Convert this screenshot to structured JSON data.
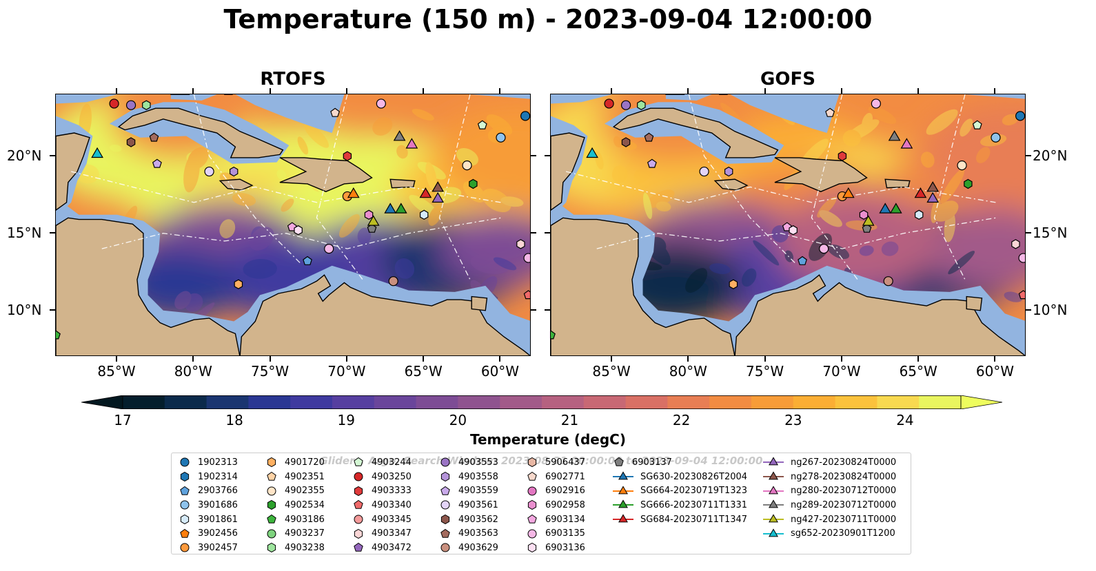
{
  "title": "Temperature (150 m) - 2023-09-04 12:00:00",
  "panels": [
    {
      "title": "RTOFS"
    },
    {
      "title": "GOFS"
    }
  ],
  "axes": {
    "x_ticks": [
      "85°W",
      "80°W",
      "75°W",
      "70°W",
      "65°W",
      "60°W"
    ],
    "x_values": [
      -85,
      -80,
      -75,
      -70,
      -65,
      -60
    ],
    "y_ticks": [
      "20°N",
      "15°N",
      "10°N"
    ],
    "y_values": [
      20,
      15,
      10
    ],
    "lon_range": [
      -89,
      -58
    ],
    "lat_range": [
      7,
      24
    ]
  },
  "colorbar": {
    "label": "Temperature (degC)",
    "ticks": [
      "17",
      "18",
      "19",
      "20",
      "21",
      "22",
      "23",
      "24"
    ],
    "tick_values": [
      17,
      18,
      19,
      20,
      21,
      22,
      23,
      24
    ],
    "range": [
      17,
      24.5
    ],
    "extend": "both",
    "colors": [
      "#041e2c",
      "#0b2a4b",
      "#1a3570",
      "#2a3793",
      "#3f3a9f",
      "#563fa0",
      "#6a459b",
      "#7d4c95",
      "#8f538f",
      "#a25a89",
      "#b66180",
      "#c86874",
      "#d97065",
      "#e87e54",
      "#f28c42",
      "#f79c38",
      "#fbae34",
      "#fbc23c",
      "#f8d950",
      "#e9f55f"
    ],
    "under_color": "#031820",
    "over_color": "#eefd5e"
  },
  "legend": {
    "watermark": "Gliders, Argo, Search Window: 2023-08-31 00:00:00 to 2023-09-04 12:00:00",
    "entries": [
      {
        "label": "1902313",
        "marker": "circle",
        "color": "#1f77b4"
      },
      {
        "label": "1902314",
        "marker": "hexagon",
        "color": "#1f77b4"
      },
      {
        "label": "2903766",
        "marker": "pentagon",
        "color": "#5fa2dd"
      },
      {
        "label": "3901686",
        "marker": "circle",
        "color": "#8fc3ec"
      },
      {
        "label": "3901861",
        "marker": "hexagon",
        "color": "#d6ebfa"
      },
      {
        "label": "3902456",
        "marker": "pentagon",
        "color": "#ff7f0e"
      },
      {
        "label": "3902457",
        "marker": "circle",
        "color": "#ff9a3c"
      },
      {
        "label": "4901720",
        "marker": "hexagon",
        "color": "#ffb062"
      },
      {
        "label": "4902351",
        "marker": "pentagon",
        "color": "#ffd3a6"
      },
      {
        "label": "4902355",
        "marker": "circle",
        "color": "#ffe5c8"
      },
      {
        "label": "4902534",
        "marker": "hexagon",
        "color": "#2ca02c"
      },
      {
        "label": "4903186",
        "marker": "pentagon",
        "color": "#3db53d"
      },
      {
        "label": "4903237",
        "marker": "circle",
        "color": "#7fd47f"
      },
      {
        "label": "4903238",
        "marker": "hexagon",
        "color": "#9ee59e"
      },
      {
        "label": "4903244",
        "marker": "pentagon",
        "color": "#d4f7d4"
      },
      {
        "label": "4903250",
        "marker": "circle",
        "color": "#d62728"
      },
      {
        "label": "4903333",
        "marker": "hexagon",
        "color": "#e03a3b"
      },
      {
        "label": "4903340",
        "marker": "pentagon",
        "color": "#f06a6a"
      },
      {
        "label": "4903345",
        "marker": "circle",
        "color": "#f49a9a"
      },
      {
        "label": "4903347",
        "marker": "hexagon",
        "color": "#fbd6d6"
      },
      {
        "label": "4903472",
        "marker": "pentagon",
        "color": "#9467bd"
      },
      {
        "label": "4903553",
        "marker": "circle",
        "color": "#9a74c4"
      },
      {
        "label": "4903558",
        "marker": "hexagon",
        "color": "#b493d9"
      },
      {
        "label": "4903559",
        "marker": "pentagon",
        "color": "#c9aaeb"
      },
      {
        "label": "4903561",
        "marker": "circle",
        "color": "#e3d4f8"
      },
      {
        "label": "4903562",
        "marker": "hexagon",
        "color": "#8c564b"
      },
      {
        "label": "4903563",
        "marker": "pentagon",
        "color": "#a36b5e"
      },
      {
        "label": "4903629",
        "marker": "circle",
        "color": "#c9907f"
      },
      {
        "label": "5906437",
        "marker": "hexagon",
        "color": "#e8b7a4"
      },
      {
        "label": "6902771",
        "marker": "pentagon",
        "color": "#f8d9cc"
      },
      {
        "label": "6902916",
        "marker": "circle",
        "color": "#e377c2"
      },
      {
        "label": "6902958",
        "marker": "hexagon",
        "color": "#ea8fcf"
      },
      {
        "label": "6903134",
        "marker": "pentagon",
        "color": "#f4a8e0"
      },
      {
        "label": "6903135",
        "marker": "circle",
        "color": "#f6b8e6"
      },
      {
        "label": "6903136",
        "marker": "hexagon",
        "color": "#fde0f3"
      },
      {
        "label": "6903137",
        "marker": "pentagon",
        "color": "#7f7f7f"
      },
      {
        "label": "SG630-20230826T2004",
        "marker": "triangle-line",
        "color": "#1f77b4"
      },
      {
        "label": "SG664-20230719T1323",
        "marker": "triangle-line",
        "color": "#ff7f0e"
      },
      {
        "label": "SG666-20230711T1331",
        "marker": "triangle-line",
        "color": "#2ca02c"
      },
      {
        "label": "SG684-20230711T1347",
        "marker": "triangle-line",
        "color": "#d62728"
      },
      {
        "label": "ng267-20230824T0000",
        "marker": "triangle-line",
        "color": "#9467bd"
      },
      {
        "label": "ng278-20230824T0000",
        "marker": "triangle-line",
        "color": "#8c564b"
      },
      {
        "label": "ng280-20230712T0000",
        "marker": "triangle-line",
        "color": "#e377c2"
      },
      {
        "label": "ng289-20230712T0000",
        "marker": "triangle-line",
        "color": "#7f7f7f"
      },
      {
        "label": "ng427-20230711T0000",
        "marker": "triangle-line",
        "color": "#bcbd22"
      },
      {
        "label": "sg652-20230901T1200",
        "marker": "triangle-line",
        "color": "#17becf"
      }
    ]
  },
  "map_data": {
    "land_color": "#d2b48c",
    "shelf_color": "#92b4e0",
    "deep_color": "#041e2c",
    "argo_floats": [
      {
        "lon": -85.2,
        "lat": 23.4,
        "marker": "circle",
        "color": "#d62728"
      },
      {
        "lon": -84.1,
        "lat": 23.3,
        "marker": "circle",
        "color": "#9a74c4"
      },
      {
        "lon": -83.1,
        "lat": 23.3,
        "marker": "hexagon",
        "color": "#9ee59e"
      },
      {
        "lon": -84.1,
        "lat": 20.9,
        "marker": "hexagon",
        "color": "#8c564b"
      },
      {
        "lon": -82.6,
        "lat": 21.2,
        "marker": "pentagon",
        "color": "#a36b5e"
      },
      {
        "lon": -82.4,
        "lat": 19.5,
        "marker": "pentagon",
        "color": "#c9aaeb"
      },
      {
        "lon": -79.0,
        "lat": 19.0,
        "marker": "circle",
        "color": "#e3d4f8"
      },
      {
        "lon": -77.4,
        "lat": 19.0,
        "marker": "hexagon",
        "color": "#b493d9"
      },
      {
        "lon": -70.8,
        "lat": 22.8,
        "marker": "pentagon",
        "color": "#f8d9cc"
      },
      {
        "lon": -67.8,
        "lat": 23.4,
        "marker": "circle",
        "color": "#f6b8e6"
      },
      {
        "lon": -70.0,
        "lat": 20.0,
        "marker": "hexagon",
        "color": "#e03a3b"
      },
      {
        "lon": -70.0,
        "lat": 17.4,
        "marker": "circle",
        "color": "#ff9a3c"
      },
      {
        "lon": -61.2,
        "lat": 22.0,
        "marker": "pentagon",
        "color": "#d4f7d4"
      },
      {
        "lon": -60.0,
        "lat": 21.2,
        "marker": "circle",
        "color": "#8fc3ec"
      },
      {
        "lon": -58.4,
        "lat": 22.6,
        "marker": "circle",
        "color": "#1f77b4"
      },
      {
        "lon": -62.2,
        "lat": 19.4,
        "marker": "circle",
        "color": "#ffe5c8"
      },
      {
        "lon": -61.8,
        "lat": 18.2,
        "marker": "hexagon",
        "color": "#2ca02c"
      },
      {
        "lon": -68.6,
        "lat": 16.2,
        "marker": "hexagon",
        "color": "#ea8fcf"
      },
      {
        "lon": -68.4,
        "lat": 15.3,
        "marker": "pentagon",
        "color": "#7f7f7f"
      },
      {
        "lon": -65.0,
        "lat": 16.2,
        "marker": "hexagon",
        "color": "#d6ebfa"
      },
      {
        "lon": -73.6,
        "lat": 15.4,
        "marker": "pentagon",
        "color": "#f4a8e0"
      },
      {
        "lon": -73.2,
        "lat": 15.2,
        "marker": "hexagon",
        "color": "#fde0f3"
      },
      {
        "lon": -71.2,
        "lat": 14.0,
        "marker": "circle",
        "color": "#f6b8e6"
      },
      {
        "lon": -72.6,
        "lat": 13.2,
        "marker": "pentagon",
        "color": "#5fa2dd"
      },
      {
        "lon": -77.1,
        "lat": 11.7,
        "marker": "hexagon",
        "color": "#ffb062"
      },
      {
        "lon": -67.0,
        "lat": 11.9,
        "marker": "circle",
        "color": "#c9907f"
      },
      {
        "lon": -58.7,
        "lat": 14.3,
        "marker": "hexagon",
        "color": "#fbd6d6"
      },
      {
        "lon": -58.2,
        "lat": 13.4,
        "marker": "circle",
        "color": "#f6b8e6"
      },
      {
        "lon": -58.2,
        "lat": 11.0,
        "marker": "pentagon",
        "color": "#f06a6a"
      },
      {
        "lon": -89.0,
        "lat": 8.4,
        "marker": "pentagon",
        "color": "#3db53d"
      }
    ],
    "gliders": [
      {
        "lon": -86.3,
        "lat": 20.2,
        "color": "#17becf"
      },
      {
        "lon": -66.6,
        "lat": 21.3,
        "color": "#7f7f7f"
      },
      {
        "lon": -65.8,
        "lat": 20.8,
        "color": "#e377c2"
      },
      {
        "lon": -69.6,
        "lat": 17.6,
        "color": "#ff7f0e"
      },
      {
        "lon": -67.2,
        "lat": 16.6,
        "color": "#1f77b4"
      },
      {
        "lon": -66.5,
        "lat": 16.6,
        "color": "#2ca02c"
      },
      {
        "lon": -68.3,
        "lat": 15.8,
        "color": "#bcbd22"
      },
      {
        "lon": -64.9,
        "lat": 17.6,
        "color": "#d62728"
      },
      {
        "lon": -64.1,
        "lat": 18.0,
        "color": "#8c564b"
      },
      {
        "lon": -64.1,
        "lat": 17.3,
        "color": "#9467bd"
      }
    ]
  }
}
